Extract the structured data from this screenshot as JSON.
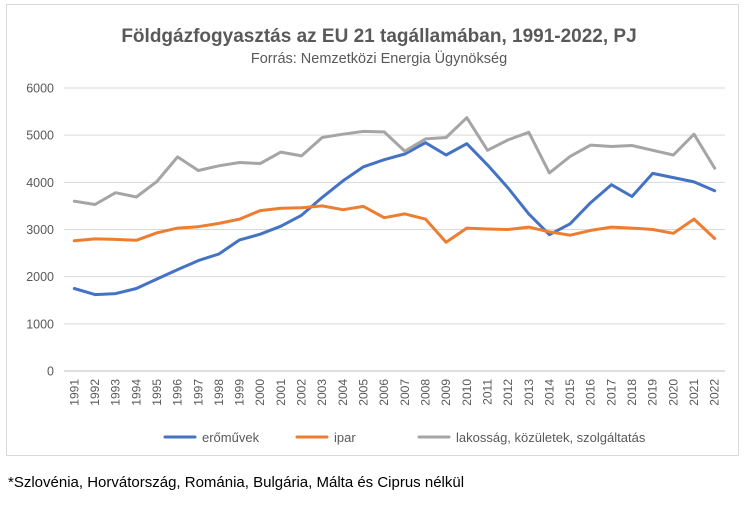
{
  "chart_data": {
    "type": "line",
    "title": "Földgázfogyasztás az EU 21 tagállamában, 1991-2022, PJ",
    "subtitle": "Forrás: Nemzetközi Energia Ügynökség",
    "xlabel": "",
    "ylabel": "",
    "ylim": [
      0,
      6000
    ],
    "yticks": [
      "0",
      "1000",
      "2000",
      "3000",
      "4000",
      "5000",
      "6000"
    ],
    "grid": true,
    "legend_position": "bottom",
    "categories": [
      "1991",
      "1992",
      "1993",
      "1994",
      "1995",
      "1996",
      "1997",
      "1998",
      "1999",
      "2000",
      "2001",
      "2002",
      "2003",
      "2004",
      "2005",
      "2006",
      "2007",
      "2008",
      "2009",
      "2010",
      "2011",
      "2012",
      "2013",
      "2014",
      "2015",
      "2016",
      "2017",
      "2018",
      "2019",
      "2020",
      "2021",
      "2022"
    ],
    "series": [
      {
        "name": "erőművek",
        "color": "#4472C4",
        "values": [
          1750,
          1620,
          1640,
          1750,
          1950,
          2150,
          2340,
          2480,
          2780,
          2900,
          3070,
          3300,
          3680,
          4030,
          4330,
          4480,
          4600,
          4840,
          4580,
          4820,
          4370,
          3880,
          3330,
          2890,
          3120,
          3570,
          3950,
          3700,
          4190,
          4100,
          4010,
          3820
        ]
      },
      {
        "name": "ipar",
        "color": "#ED7D31",
        "values": [
          2760,
          2800,
          2790,
          2770,
          2930,
          3030,
          3060,
          3130,
          3220,
          3400,
          3450,
          3460,
          3500,
          3420,
          3490,
          3250,
          3330,
          3220,
          2730,
          3030,
          3010,
          3000,
          3050,
          2950,
          2880,
          2980,
          3050,
          3030,
          3000,
          2920,
          3220,
          2810
        ]
      },
      {
        "name": "lakosság, közületek, szolgáltatás",
        "color": "#A5A5A5",
        "values": [
          3600,
          3530,
          3780,
          3690,
          4020,
          4540,
          4250,
          4350,
          4420,
          4400,
          4640,
          4560,
          4950,
          5020,
          5080,
          5070,
          4660,
          4920,
          4950,
          5370,
          4680,
          4900,
          5060,
          4200,
          4550,
          4790,
          4760,
          4780,
          4680,
          4580,
          5020,
          4300
        ]
      }
    ]
  },
  "footnote": "*Szlovénia, Horvátország, Románia, Bulgária, Málta és Ciprus nélkül"
}
